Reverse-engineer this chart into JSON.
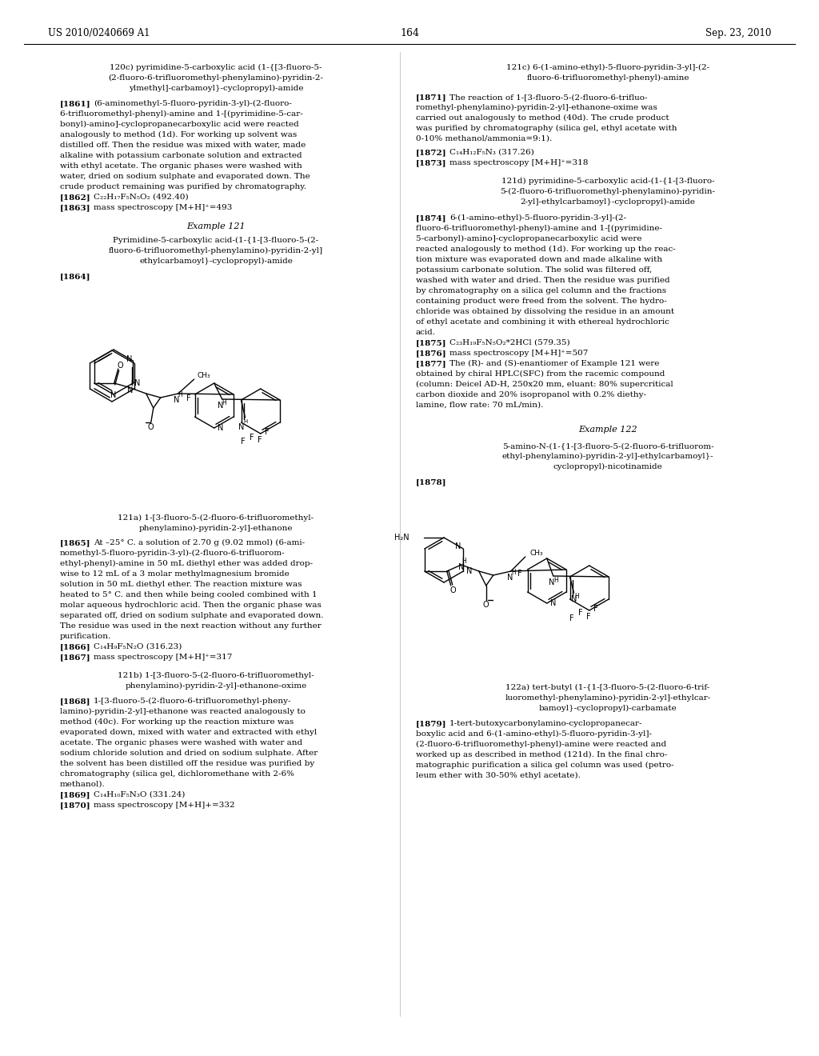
{
  "page_number": "164",
  "patent_number": "US 2010/0240669 A1",
  "patent_date": "Sep. 23, 2010",
  "bg_color": "#ffffff",
  "text_color": "#000000",
  "font_size_body": 7.5,
  "font_size_header": 8.5,
  "font_size_bold": 8.0
}
